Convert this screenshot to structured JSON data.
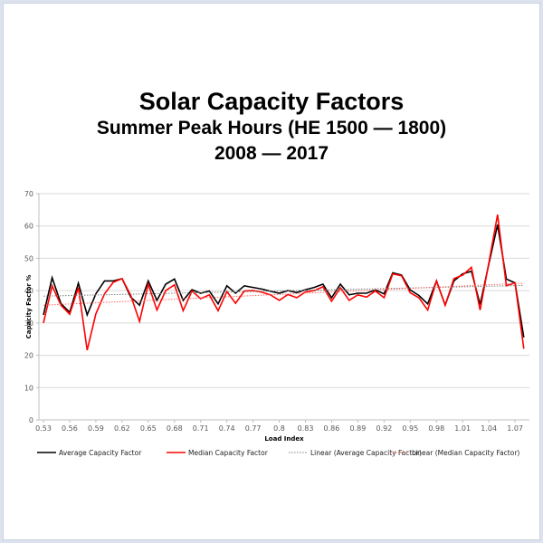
{
  "chart_data": {
    "type": "line",
    "title": "Solar Capacity Factors",
    "subtitle_lines": [
      "Summer Peak Hours (HE 1500 — 1800)",
      "2008 — 2017"
    ],
    "xlabel": "Load Index",
    "ylabel": "Capacity Factor %",
    "ylim": [
      0,
      70
    ],
    "yticks": [
      0,
      10,
      20,
      30,
      40,
      50,
      60,
      70
    ],
    "xtick_labels": [
      "0.53",
      "0.56",
      "0.59",
      "0.62",
      "0.65",
      "0.68",
      "0.71",
      "0.74",
      "0.77",
      "0.8",
      "0.83",
      "0.86",
      "0.89",
      "0.92",
      "0.95",
      "0.98",
      "1.01",
      "1.04",
      "1.07"
    ],
    "grid": true,
    "legend_position": "bottom",
    "x": [
      0.53,
      0.54,
      0.55,
      0.56,
      0.57,
      0.58,
      0.59,
      0.6,
      0.61,
      0.62,
      0.63,
      0.64,
      0.65,
      0.66,
      0.67,
      0.68,
      0.69,
      0.7,
      0.71,
      0.72,
      0.73,
      0.74,
      0.75,
      0.76,
      0.77,
      0.78,
      0.79,
      0.8,
      0.81,
      0.82,
      0.83,
      0.84,
      0.85,
      0.86,
      0.87,
      0.88,
      0.89,
      0.9,
      0.91,
      0.92,
      0.93,
      0.94,
      0.95,
      0.96,
      0.97,
      0.98,
      0.99,
      1.0,
      1.01,
      1.02,
      1.03,
      1.04,
      1.05,
      1.06,
      1.07,
      1.08
    ],
    "series": [
      {
        "name": "Average Capacity Factor",
        "color": "#000000",
        "style": "solid",
        "values": [
          32.5,
          44,
          36,
          33.3,
          42.3,
          32.5,
          39,
          43,
          43,
          43.7,
          38,
          35.5,
          43,
          37,
          42,
          43.6,
          37,
          40.3,
          39.2,
          39.9,
          35.9,
          41.5,
          39.2,
          41.5,
          41,
          40.5,
          39.8,
          39.2,
          40,
          39.4,
          40.3,
          41,
          42,
          37.8,
          42,
          38.7,
          39.2,
          39.2,
          40.2,
          39,
          45.5,
          44.8,
          40.2,
          38.5,
          35.9,
          43,
          35.5,
          43,
          45.2,
          46,
          35.7,
          48.3,
          60.4,
          43.6,
          42.4,
          25.5
        ]
      },
      {
        "name": "Median Capacity Factor",
        "color": "#ff0000",
        "style": "solid",
        "values": [
          30,
          41.5,
          35.5,
          32.7,
          41,
          21.6,
          32.8,
          39,
          42.6,
          43.7,
          38.5,
          30.5,
          42,
          34,
          40,
          41.8,
          33.8,
          39.9,
          37.5,
          38.7,
          33.8,
          39.7,
          36.1,
          39.9,
          40,
          39.5,
          38.7,
          37,
          38.8,
          37.8,
          39.6,
          40,
          41.2,
          36.7,
          40.9,
          37,
          38.7,
          38,
          39.9,
          37.8,
          45.2,
          44.6,
          39.3,
          37.8,
          34,
          43,
          35.5,
          43.7,
          44.8,
          47.2,
          34,
          48.7,
          63.5,
          41.5,
          42.4,
          22
        ]
      },
      {
        "name": "Linear (Average Capacity Factor)",
        "color": "#7f7f7f",
        "style": "dotted",
        "trend": [
          38.3,
          41.6
        ]
      },
      {
        "name": "Linear (Median Capacity Factor)",
        "color": "#ff6666",
        "style": "dotted",
        "trend": [
          35.5,
          42.3
        ]
      }
    ]
  }
}
